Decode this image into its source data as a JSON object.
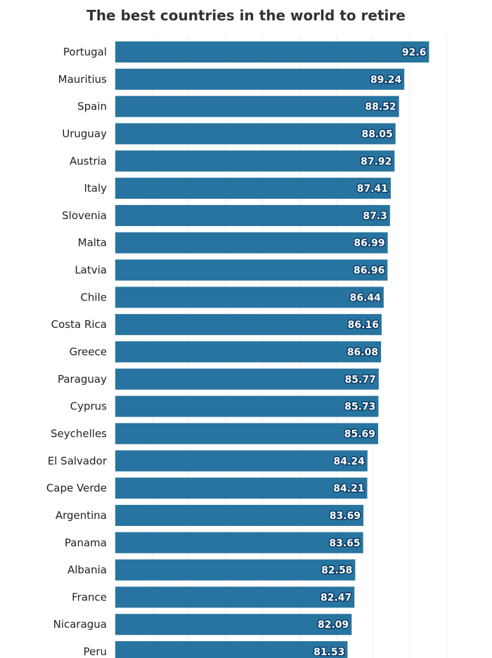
{
  "chart_data": {
    "type": "bar",
    "orientation": "horizontal",
    "title": "The best countries in the world to retire",
    "xlabel": "",
    "ylabel": "",
    "xlim": [
      50,
      100
    ],
    "grid": true,
    "bar_color": "#2874a0",
    "categories": [
      "Portugal",
      "Mauritius",
      "Spain",
      "Uruguay",
      "Austria",
      "Italy",
      "Slovenia",
      "Malta",
      "Latvia",
      "Chile",
      "Costa Rica",
      "Greece",
      "Paraguay",
      "Cyprus",
      "Seychelles",
      "El Salvador",
      "Cape Verde",
      "Argentina",
      "Panama",
      "Albania",
      "France",
      "Nicaragua",
      "Peru"
    ],
    "values": [
      92.6,
      89.24,
      88.52,
      88.05,
      87.92,
      87.41,
      87.3,
      86.99,
      86.96,
      86.44,
      86.16,
      86.08,
      85.77,
      85.73,
      85.69,
      84.24,
      84.21,
      83.69,
      83.65,
      82.58,
      82.47,
      82.09,
      81.53
    ]
  }
}
